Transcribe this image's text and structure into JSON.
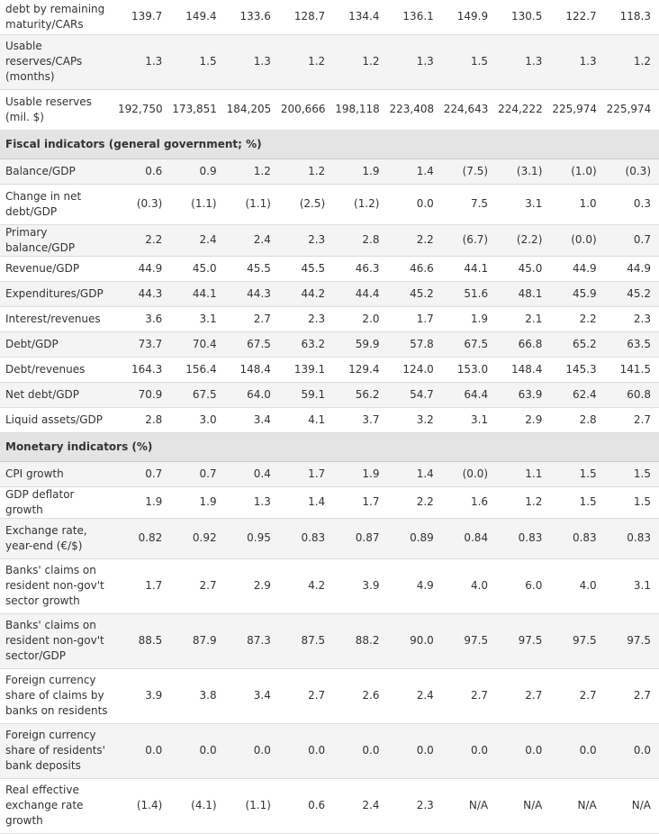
{
  "table": {
    "rows": [
      {
        "type": "data",
        "h": 38,
        "label": "debt by remaining maturity/CARs",
        "values": [
          "139.7",
          "149.4",
          "133.6",
          "128.7",
          "134.4",
          "136.1",
          "149.9",
          "130.5",
          "122.7",
          "118.3"
        ]
      },
      {
        "type": "data",
        "h": 61,
        "label": "Usable reserves/CAPs (months)",
        "values": [
          "1.3",
          "1.5",
          "1.3",
          "1.2",
          "1.2",
          "1.3",
          "1.5",
          "1.3",
          "1.3",
          "1.2"
        ]
      },
      {
        "type": "data",
        "h": 45,
        "label": "Usable reserves (mil. $)",
        "values": [
          "192,750",
          "173,851",
          "184,205",
          "200,666",
          "198,118",
          "223,408",
          "224,643",
          "224,222",
          "225,974",
          "225,974"
        ]
      },
      {
        "type": "section",
        "h": 31,
        "label": "Fiscal indicators (general government; %)"
      },
      {
        "type": "data",
        "h": 28,
        "label": "Balance/GDP",
        "values": [
          "0.6",
          "0.9",
          "1.2",
          "1.2",
          "1.9",
          "1.4",
          "(7.5)",
          "(3.1)",
          "(1.0)",
          "(0.3)"
        ]
      },
      {
        "type": "data",
        "h": 45,
        "label": "Change in net debt/GDP",
        "values": [
          "(0.3)",
          "(1.1)",
          "(1.1)",
          "(2.5)",
          "(1.2)",
          "0.0",
          "7.5",
          "3.1",
          "1.0",
          "0.3"
        ]
      },
      {
        "type": "data",
        "h": 28,
        "label": "Primary balance/GDP",
        "values": [
          "2.2",
          "2.4",
          "2.4",
          "2.3",
          "2.8",
          "2.2",
          "(6.7)",
          "(2.2)",
          "(0.0)",
          "0.7"
        ]
      },
      {
        "type": "data",
        "h": 28,
        "label": "Revenue/GDP",
        "values": [
          "44.9",
          "45.0",
          "45.5",
          "45.5",
          "46.3",
          "46.6",
          "44.1",
          "45.0",
          "44.9",
          "44.9"
        ]
      },
      {
        "type": "data",
        "h": 28,
        "label": "Expenditures/GDP",
        "values": [
          "44.3",
          "44.1",
          "44.3",
          "44.2",
          "44.4",
          "45.2",
          "51.6",
          "48.1",
          "45.9",
          "45.2"
        ]
      },
      {
        "type": "data",
        "h": 28,
        "label": "Interest/revenues",
        "values": [
          "3.6",
          "3.1",
          "2.7",
          "2.3",
          "2.0",
          "1.7",
          "1.9",
          "2.1",
          "2.2",
          "2.3"
        ]
      },
      {
        "type": "data",
        "h": 28,
        "label": "Debt/GDP",
        "values": [
          "73.7",
          "70.4",
          "67.5",
          "63.2",
          "59.9",
          "57.8",
          "67.5",
          "66.8",
          "65.2",
          "63.5"
        ]
      },
      {
        "type": "data",
        "h": 28,
        "label": "Debt/revenues",
        "values": [
          "164.3",
          "156.4",
          "148.4",
          "139.1",
          "129.4",
          "124.0",
          "153.0",
          "148.4",
          "145.3",
          "141.5"
        ]
      },
      {
        "type": "data",
        "h": 28,
        "label": "Net debt/GDP",
        "values": [
          "70.9",
          "67.5",
          "64.0",
          "59.1",
          "56.2",
          "54.7",
          "64.4",
          "63.9",
          "62.4",
          "60.8"
        ]
      },
      {
        "type": "data",
        "h": 28,
        "label": "Liquid assets/GDP",
        "values": [
          "2.8",
          "3.0",
          "3.4",
          "4.1",
          "3.7",
          "3.2",
          "3.1",
          "2.9",
          "2.8",
          "2.7"
        ]
      },
      {
        "type": "section",
        "h": 28,
        "label": "Monetary indicators (%)"
      },
      {
        "type": "data",
        "h": 28,
        "label": "CPI growth",
        "values": [
          "0.7",
          "0.7",
          "0.4",
          "1.7",
          "1.9",
          "1.4",
          "(0.0)",
          "1.1",
          "1.5",
          "1.5"
        ]
      },
      {
        "type": "data",
        "h": 28,
        "label": "GDP deflator growth",
        "values": [
          "1.9",
          "1.9",
          "1.3",
          "1.4",
          "1.7",
          "2.2",
          "1.6",
          "1.2",
          "1.5",
          "1.5"
        ]
      },
      {
        "type": "data",
        "h": 45,
        "label": "Exchange rate, year-end (€/$)",
        "values": [
          "0.82",
          "0.92",
          "0.95",
          "0.83",
          "0.87",
          "0.89",
          "0.84",
          "0.83",
          "0.83",
          "0.83"
        ]
      },
      {
        "type": "data",
        "h": 61,
        "label": "Banks' claims on resident non-gov't sector growth",
        "values": [
          "1.7",
          "2.7",
          "2.9",
          "4.2",
          "3.9",
          "4.9",
          "4.0",
          "6.0",
          "4.0",
          "3.1"
        ]
      },
      {
        "type": "data",
        "h": 61,
        "label": "Banks' claims on resident non-gov't sector/GDP",
        "values": [
          "88.5",
          "87.9",
          "87.3",
          "87.5",
          "88.2",
          "90.0",
          "97.5",
          "97.5",
          "97.5",
          "97.5"
        ]
      },
      {
        "type": "data",
        "h": 61,
        "label": "Foreign currency share of claims by banks on residents",
        "values": [
          "3.9",
          "3.8",
          "3.4",
          "2.7",
          "2.6",
          "2.4",
          "2.7",
          "2.7",
          "2.7",
          "2.7"
        ]
      },
      {
        "type": "data",
        "h": 61,
        "label": "Foreign currency share of residents' bank deposits",
        "values": [
          "0.0",
          "0.0",
          "0.0",
          "0.0",
          "0.0",
          "0.0",
          "0.0",
          "0.0",
          "0.0",
          "0.0"
        ]
      },
      {
        "type": "data",
        "h": 61,
        "label": "Real effective exchange rate growth",
        "values": [
          "(1.4)",
          "(4.1)",
          "(1.1)",
          "0.6",
          "2.4",
          "2.3",
          "N/A",
          "N/A",
          "N/A",
          "N/A"
        ]
      }
    ]
  }
}
